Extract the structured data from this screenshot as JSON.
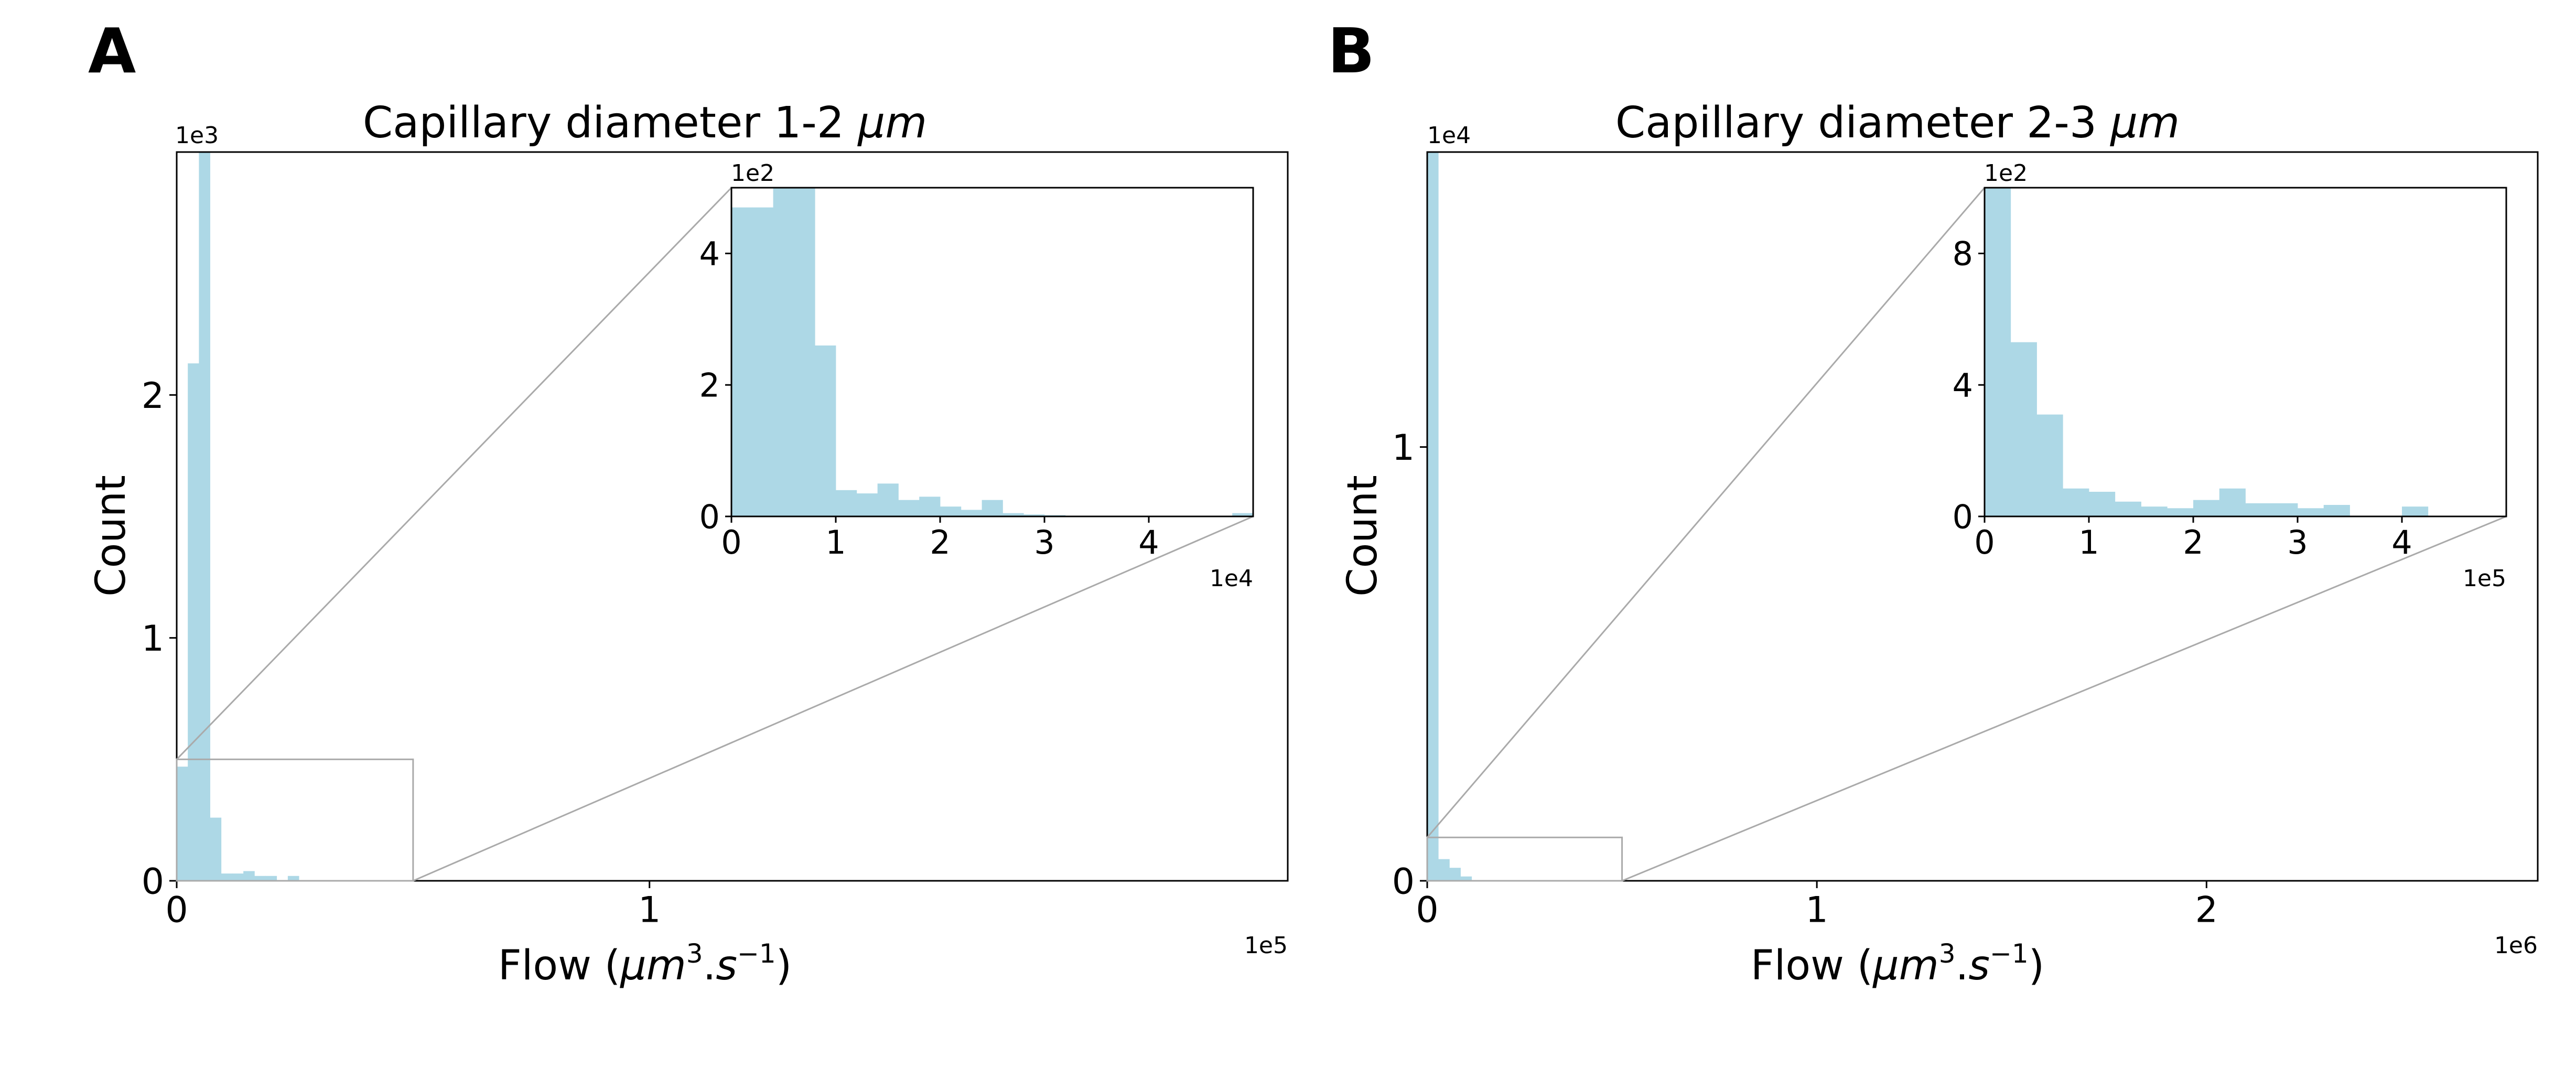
{
  "colors": {
    "bar": "#add8e6",
    "frame": "#000000",
    "zoom": "#aaaaaa",
    "background": "#ffffff"
  },
  "chart_data": [
    {
      "panel_label": "A",
      "type": "bar",
      "title_prefix": "Capillary diameter 1-2 ",
      "title_unit": "μm",
      "xlabel": "Flow",
      "ylabel": "Count",
      "main": {
        "x_multiplier": "1e5",
        "y_multiplier": "1e3",
        "x_range": [
          0,
          2.35
        ],
        "y_range": [
          0,
          3.0
        ],
        "x_ticks": [
          {
            "v": 0,
            "label": "0"
          },
          {
            "v": 1,
            "label": "1"
          }
        ],
        "y_ticks": [
          {
            "v": 0,
            "label": "0"
          },
          {
            "v": 1,
            "label": "1"
          },
          {
            "v": 2,
            "label": "2"
          }
        ],
        "bin_width": 0.0235,
        "values": [
          0.47,
          2.13,
          3.0,
          0.26,
          0.03,
          0.03,
          0.04,
          0.02,
          0.02,
          0.0,
          0.02,
          0.0,
          0.0,
          0.0,
          0.0,
          0.0,
          0.0,
          0.0,
          0.0,
          0.0,
          0.0,
          0.0,
          0.0,
          0.0,
          0.0,
          0.0,
          0.0,
          0.0,
          0.0,
          0.0,
          0.0,
          0.0,
          0.0,
          0.0,
          0.0,
          0.0,
          0.0,
          0.0,
          0.0,
          0.0,
          0.0,
          0.0,
          0.0,
          0.0,
          0.0,
          0.0,
          0.0,
          0.0,
          0.0,
          0.0,
          0.0,
          0.0,
          0.0,
          0.0,
          0.0,
          0.0,
          0.0,
          0.0,
          0.0,
          0.0,
          0.0,
          0.0,
          0.0,
          0.0,
          0.0,
          0.0,
          0.0,
          0.0,
          0.0,
          0.0,
          0.0,
          0.0,
          0.0,
          0.0,
          0.0,
          0.0,
          0.0,
          0.0,
          0.0,
          0.0,
          0.0,
          0.0,
          0.0,
          0.0,
          0.0,
          0.0,
          0.0,
          0.0,
          0.0,
          0.0,
          0.0,
          0.0,
          0.0,
          0.0,
          0.0,
          0.0,
          0.0,
          0.0,
          0.0,
          0.0
        ],
        "zoom_region": {
          "x": [
            0,
            0.5
          ],
          "y": [
            0,
            0.5
          ]
        }
      },
      "inset": {
        "x_multiplier": "1e4",
        "y_multiplier": "1e2",
        "x_range": [
          0,
          5.0
        ],
        "y_range": [
          0,
          5.0
        ],
        "x_ticks": [
          {
            "v": 0,
            "label": "0"
          },
          {
            "v": 1,
            "label": "1"
          },
          {
            "v": 2,
            "label": "2"
          },
          {
            "v": 3,
            "label": "3"
          },
          {
            "v": 4,
            "label": "4"
          }
        ],
        "y_ticks": [
          {
            "v": 0,
            "label": "0"
          },
          {
            "v": 2,
            "label": "2"
          },
          {
            "v": 4,
            "label": "4"
          }
        ],
        "bin_width": 0.2,
        "values": [
          4.7,
          4.7,
          5.0,
          5.0,
          2.6,
          0.4,
          0.35,
          0.5,
          0.25,
          0.3,
          0.15,
          0.1,
          0.25,
          0.05,
          0.03,
          0.02,
          0.01,
          0.0,
          0.0,
          0.0,
          0.0,
          0.0,
          0.0,
          0.0,
          0.05
        ]
      }
    },
    {
      "panel_label": "B",
      "type": "bar",
      "title_prefix": "Capillary diameter 2-3 ",
      "title_unit": "μm",
      "xlabel": "Flow",
      "ylabel": "Count",
      "main": {
        "x_multiplier": "1e6",
        "y_multiplier": "1e4",
        "x_range": [
          0,
          2.85
        ],
        "y_range": [
          0,
          1.68
        ],
        "x_ticks": [
          {
            "v": 0,
            "label": "0"
          },
          {
            "v": 1,
            "label": "1"
          },
          {
            "v": 2,
            "label": "2"
          }
        ],
        "y_ticks": [
          {
            "v": 0,
            "label": "0"
          },
          {
            "v": 1,
            "label": "1"
          }
        ],
        "bin_width": 0.0285,
        "values": [
          1.68,
          0.05,
          0.03,
          0.01,
          0.0,
          0.0,
          0.0,
          0.0,
          0.0,
          0.0,
          0.0,
          0.0,
          0.0,
          0.0,
          0.0,
          0.0,
          0.0,
          0.0,
          0.0,
          0.0,
          0.0,
          0.0,
          0.0,
          0.0,
          0.0,
          0.0,
          0.0,
          0.0,
          0.0,
          0.0,
          0.0,
          0.0,
          0.0,
          0.0,
          0.0,
          0.0,
          0.0,
          0.0,
          0.0,
          0.0,
          0.0,
          0.0,
          0.0,
          0.0,
          0.0,
          0.0,
          0.0,
          0.0,
          0.0,
          0.0,
          0.0,
          0.0,
          0.0,
          0.0,
          0.0,
          0.0,
          0.0,
          0.0,
          0.0,
          0.0,
          0.0,
          0.0,
          0.0,
          0.0,
          0.0,
          0.0,
          0.0,
          0.0,
          0.0,
          0.0,
          0.0,
          0.0,
          0.0,
          0.0,
          0.0,
          0.0,
          0.0,
          0.0,
          0.0,
          0.0,
          0.0,
          0.0,
          0.0,
          0.0,
          0.0,
          0.0,
          0.0,
          0.0,
          0.0,
          0.0,
          0.0,
          0.0,
          0.0,
          0.0,
          0.0,
          0.0,
          0.0,
          0.0,
          0.0,
          0.0
        ],
        "zoom_region": {
          "x": [
            0,
            0.5
          ],
          "y": [
            0,
            0.1
          ]
        }
      },
      "inset": {
        "x_multiplier": "1e5",
        "y_multiplier": "1e2",
        "x_range": [
          0,
          5.0
        ],
        "y_range": [
          0,
          10.0
        ],
        "x_ticks": [
          {
            "v": 0,
            "label": "0"
          },
          {
            "v": 1,
            "label": "1"
          },
          {
            "v": 2,
            "label": "2"
          },
          {
            "v": 3,
            "label": "3"
          },
          {
            "v": 4,
            "label": "4"
          }
        ],
        "y_ticks": [
          {
            "v": 0,
            "label": "0"
          },
          {
            "v": 4,
            "label": "4"
          },
          {
            "v": 8,
            "label": "8"
          }
        ],
        "bin_width": 0.25,
        "values": [
          10.0,
          5.3,
          3.1,
          0.85,
          0.75,
          0.45,
          0.3,
          0.25,
          0.5,
          0.85,
          0.4,
          0.4,
          0.25,
          0.35,
          0.0,
          0.0,
          0.3,
          0.0,
          0.0,
          0.0
        ]
      }
    }
  ]
}
